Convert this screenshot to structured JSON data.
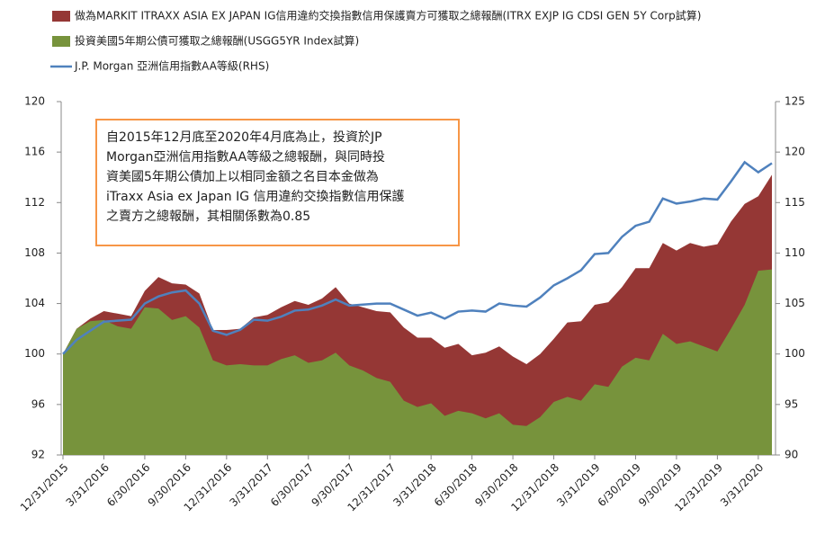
{
  "chart_data": {
    "type": "area",
    "legend": "top-left",
    "categories": [
      "12/31/2015",
      null,
      null,
      "3/31/2016",
      null,
      null,
      "6/30/2016",
      null,
      null,
      "9/30/2016",
      null,
      null,
      "12/31/2016",
      null,
      null,
      "3/31/2017",
      null,
      null,
      "6/30/2017",
      null,
      null,
      "9/30/2017",
      null,
      null,
      "12/31/2017",
      null,
      null,
      "3/31/2018",
      null,
      null,
      "6/30/2018",
      null,
      null,
      "9/30/2018",
      null,
      null,
      "12/31/2018",
      null,
      null,
      "3/31/2019",
      null,
      null,
      "6/30/2019",
      null,
      null,
      "9/30/2019",
      null,
      null,
      "12/31/2019",
      null,
      null,
      "3/31/2020",
      null
    ],
    "series": [
      {
        "name": "做為MARKIT ITRAXX ASIA EX JAPAN IG信用違約交換指數信用保護賣方可獲取之總報酬(ITRX EXJP IG CDSI GEN 5Y Corp試算)",
        "color": "#953735",
        "values": [
          100,
          102,
          102.8,
          103.4,
          103.2,
          103,
          105,
          106.1,
          105.6,
          105.5,
          104.8,
          101.9,
          101.9,
          102,
          102.9,
          103.1,
          103.7,
          104.2,
          103.9,
          104.4,
          105.3,
          104,
          103.7,
          103.4,
          103.3,
          102.1,
          101.3,
          101.3,
          100.5,
          100.8,
          99.9,
          100.1,
          100.6,
          99.8,
          99.2,
          100,
          101.2,
          102.5,
          102.6,
          103.9,
          104.1,
          105.3,
          106.8,
          106.8,
          108.8,
          108.2,
          108.8,
          108.5,
          108.7,
          110.5,
          111.9,
          112.5,
          114.2
        ]
      },
      {
        "name": "投資美國5年期公債可獲取之總報酬(USGG5YR Index試算)",
        "color": "#77933c",
        "values": [
          100,
          102,
          102.6,
          102.7,
          102.2,
          102,
          103.7,
          103.6,
          102.7,
          103,
          102.1,
          99.5,
          99.1,
          99.2,
          99.1,
          99.1,
          99.6,
          99.9,
          99.3,
          99.5,
          100.1,
          99.1,
          98.7,
          98.1,
          97.8,
          96.3,
          95.8,
          96.1,
          95.1,
          95.5,
          95.3,
          94.9,
          95.3,
          94.4,
          94.3,
          95,
          96.2,
          96.6,
          96.3,
          97.6,
          97.4,
          99,
          99.7,
          99.5,
          101.6,
          100.8,
          101,
          100.6,
          100.2,
          102,
          103.9,
          106.6,
          106.7
        ]
      },
      {
        "name": "J.P. Morgan 亞洲信用指數AA等級(RHS)",
        "color": "#4f81bd",
        "type": "line",
        "axis": "y2",
        "values": [
          100,
          101.4,
          102.3,
          103.2,
          103.3,
          103.4,
          105,
          105.7,
          106.1,
          106.3,
          105,
          102.3,
          101.9,
          102.4,
          103.4,
          103.3,
          103.7,
          104.3,
          104.4,
          104.8,
          105.4,
          104.8,
          104.9,
          105,
          105,
          104.4,
          103.8,
          104.1,
          103.5,
          104.2,
          104.3,
          104.2,
          105,
          104.8,
          104.7,
          105.6,
          106.8,
          107.5,
          108.3,
          109.9,
          110,
          111.6,
          112.7,
          113.1,
          115.4,
          114.9,
          115.1,
          115.4,
          115.3,
          117.1,
          119,
          118,
          118.9
        ]
      }
    ],
    "ylim": [
      92,
      120
    ],
    "yticks": [
      92,
      96,
      100,
      104,
      108,
      112,
      116,
      120
    ],
    "y2lim": [
      90,
      125
    ],
    "y2ticks": [
      90,
      95,
      100,
      105,
      110,
      115,
      120,
      125
    ],
    "annotation": [
      "自2015年12月底至2020年4月底為止，投資於JP",
      "Morgan亞洲信用指數AA等級之總報酬，與同時投",
      "資美國5年期公債加上以相同金額之名目本金做為",
      "iTraxx Asia ex Japan IG 信用違約交換指數信用保護",
      "之賣方之總報酬，其相關係數為0.85"
    ]
  }
}
